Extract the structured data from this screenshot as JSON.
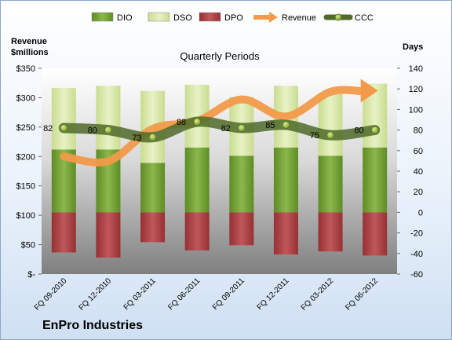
{
  "chart_data": {
    "type": "bar",
    "title": "Quarterly Periods",
    "company": "EnPro Industries",
    "left_axis_label": [
      "Revenue",
      "$millions"
    ],
    "right_axis_label": "Days",
    "categories": [
      "FQ 09-2010",
      "FQ 12-2010",
      "FQ 03-2011",
      "FQ 06-2011",
      "FQ 09-2011",
      "FQ 12-2011",
      "FQ 03-2012",
      "FQ 06-2012"
    ],
    "left_ticks": [
      "$-",
      "$50",
      "$100",
      "$150",
      "$200",
      "$250",
      "$300",
      "$350"
    ],
    "left_ylim": [
      0,
      350
    ],
    "right_ticks": [
      "-60",
      "-40",
      "-20",
      "0",
      "20",
      "40",
      "60",
      "80",
      "100",
      "120",
      "140"
    ],
    "right_ylim": [
      -60,
      140
    ],
    "legend_position": "top",
    "grid": false,
    "series": [
      {
        "name": "DIO",
        "axis": "right",
        "values": [
          61,
          61,
          48,
          63,
          55,
          63,
          55,
          63
        ],
        "color": "#6a9c2e"
      },
      {
        "name": "DSO",
        "axis": "right",
        "values": [
          60,
          62,
          70,
          61,
          57,
          60,
          60,
          62
        ],
        "color": "#d7e7a9"
      },
      {
        "name": "DPO",
        "axis": "right",
        "values": [
          -39,
          -44,
          -29,
          -37,
          -32,
          -41,
          -38,
          -42
        ],
        "color": "#a83a3c"
      },
      {
        "name": "Revenue",
        "axis": "left",
        "values": [
          200,
          192,
          247,
          260,
          297,
          268,
          310,
          312
        ],
        "color": "#f29a4a"
      },
      {
        "name": "CCC",
        "axis": "right",
        "values": [
          82,
          80,
          73,
          88,
          82,
          85,
          75,
          80
        ],
        "color": "#4f6a2a"
      }
    ],
    "data_labels": [
      "82",
      "80",
      "73",
      "88",
      "82",
      "85",
      "75",
      "80"
    ]
  }
}
